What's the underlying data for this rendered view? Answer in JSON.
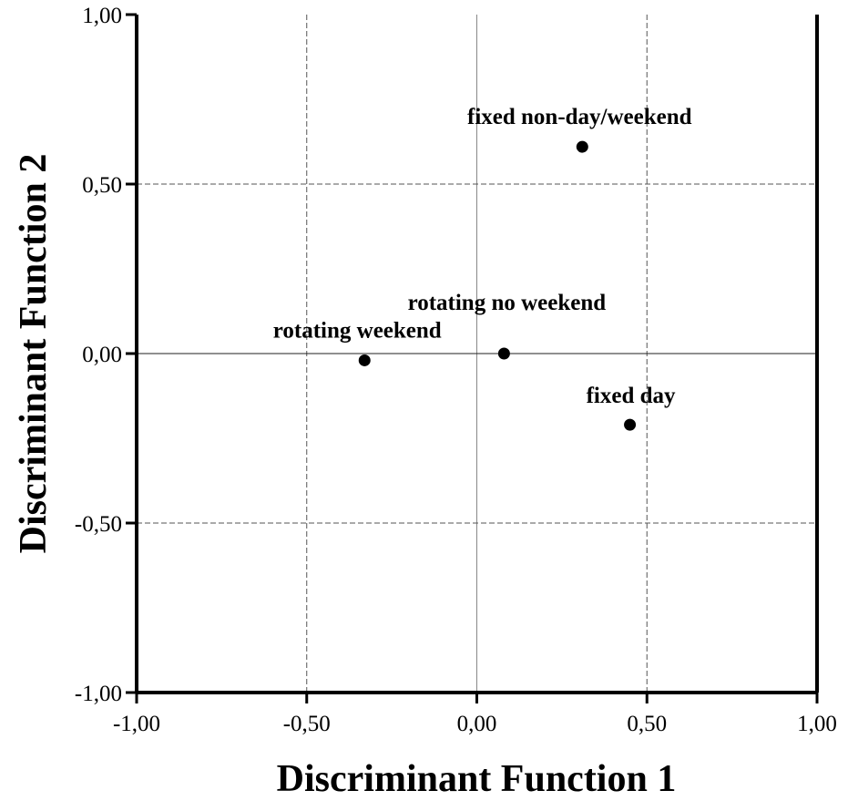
{
  "chart_data": {
    "type": "scatter",
    "xlabel": "Discriminant Function 1",
    "ylabel": "Discriminant Function 2",
    "point_labels": [
      "rotating weekend",
      "rotating no weekend",
      "fixed non-day/weekend",
      "fixed day"
    ],
    "x": [
      -0.33,
      0.08,
      0.31,
      0.45
    ],
    "values": [
      -0.02,
      0.0,
      0.61,
      -0.21
    ],
    "color": "#000000",
    "xlim": [
      -1,
      1
    ],
    "ylim": [
      -1,
      1
    ],
    "xticks": [
      {
        "value": -1,
        "label": "-1,00"
      },
      {
        "value": -0.5,
        "label": "-0,50"
      },
      {
        "value": 0,
        "label": "0,00"
      },
      {
        "value": 0.5,
        "label": "0,50"
      },
      {
        "value": 1,
        "label": "1,00"
      }
    ],
    "yticks": [
      {
        "value": -1,
        "label": "-1,00"
      },
      {
        "value": -0.5,
        "label": "-0,50"
      },
      {
        "value": 0,
        "label": "0,00"
      },
      {
        "value": 0.5,
        "label": "0,50"
      },
      {
        "value": 1,
        "label": "1,00"
      }
    ],
    "grid": true
  }
}
